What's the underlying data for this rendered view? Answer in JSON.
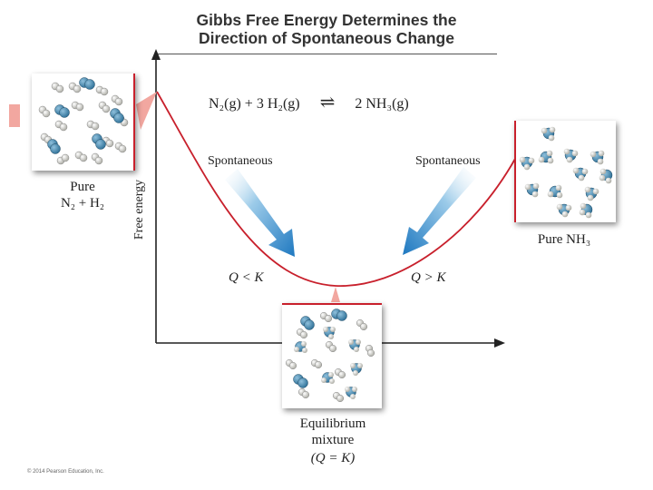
{
  "title": {
    "line1": "Gibbs Free Energy Determines the",
    "line2": "Direction of Spontaneous Change"
  },
  "reaction": {
    "lhs": "N₂(g) + 3 H₂(g)",
    "arrow": "⇌",
    "rhs": "2 NH₃(g)"
  },
  "axis": {
    "ylabel": "Free energy"
  },
  "labels": {
    "spont_left": "Spontaneous",
    "spont_right": "Spontaneous",
    "q_less": "Q < K",
    "q_greater": "Q > K",
    "pure_left_line1": "Pure",
    "pure_left_line2": "N₂ + H₂",
    "pure_right": "Pure NH₃",
    "eq_line1": "Equilibrium",
    "eq_line2": "mixture",
    "eq_line3": "(Q = K)"
  },
  "copyright": "© 2014 Pearson Education, Inc.",
  "colors": {
    "curve": "#c8202c",
    "arrow_light": "#e6f1f9",
    "arrow_dark": "#1e78c0",
    "n_atom": "#3a7fa6",
    "h_atom": "#d6d6d0"
  },
  "curve_points": [
    {
      "position": "Pure N₂ + H₂",
      "level": "high"
    },
    {
      "position": "Equilibrium mixture (Q = K)",
      "level": "minimum"
    },
    {
      "position": "Pure NH₃",
      "level": "intermediate"
    }
  ]
}
